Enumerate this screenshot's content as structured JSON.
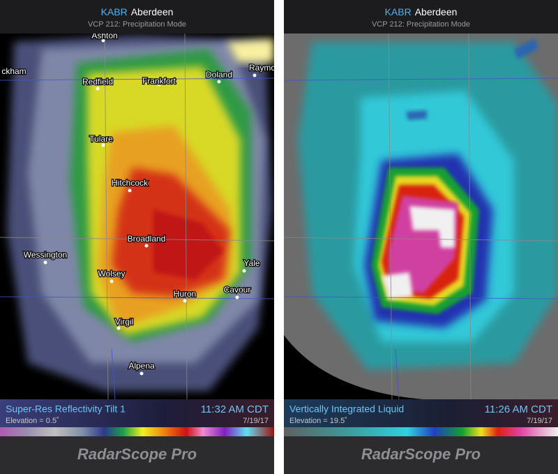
{
  "panels": [
    {
      "header": {
        "station": "KABR",
        "city": "Aberdeen",
        "mode": "VCP 212: Precipitation Mode"
      },
      "places": [
        "Ashton",
        "ckham",
        "Redfield",
        "Frankfort",
        "Doland",
        "Raymo",
        "Tulare",
        "Hitchcock",
        "Broadland",
        "Wessington",
        "Yale",
        "Wolsey",
        "Huron",
        "Cavour",
        "Virgil",
        "Alpena"
      ],
      "footer": {
        "product": "Super-Res Reflectivity Tilt 1",
        "elevation": "Elevation = 0.5˚",
        "time": "11:32 AM CDT",
        "date": "7/19/17"
      },
      "brand": "RadarScope Pro"
    },
    {
      "header": {
        "station": "KABR",
        "city": "Aberdeen",
        "mode": "VCP 212: Precipitation Mode"
      },
      "places": [],
      "footer": {
        "product": "Vertically Integrated Liquid",
        "elevation": "Elevation = 19.5˚",
        "time": "11:26 AM CDT",
        "date": "7/19/17"
      },
      "brand": "RadarScope Pro"
    }
  ]
}
